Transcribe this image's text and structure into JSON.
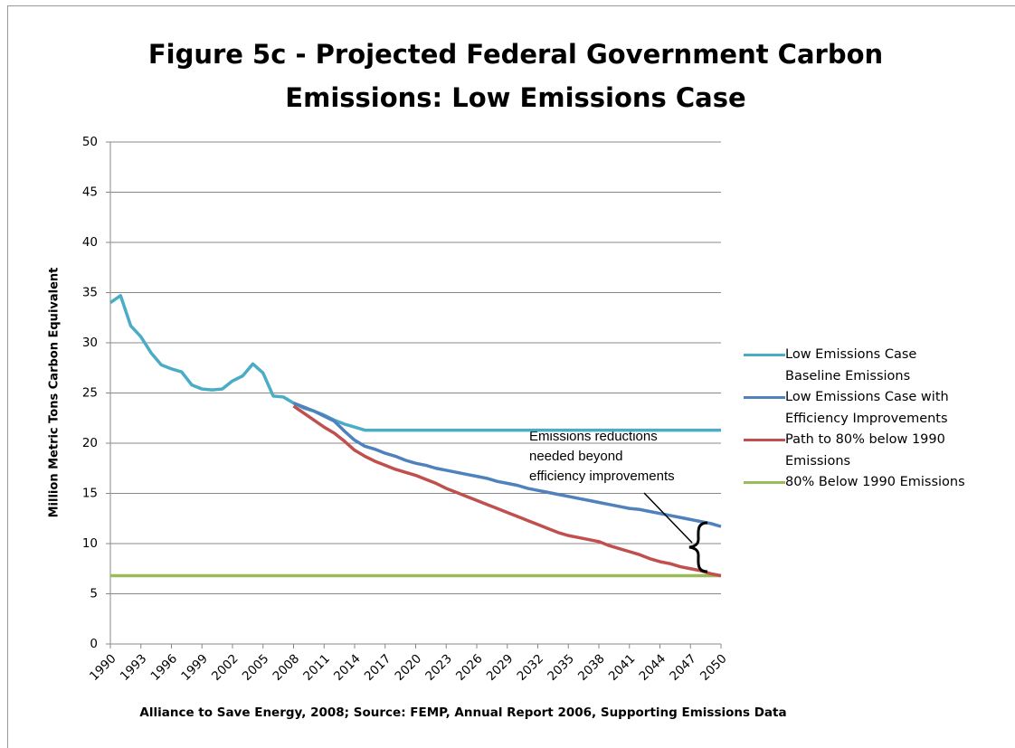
{
  "chart_data": {
    "type": "line",
    "title": "Figure 5c - Projected Federal Government Carbon Emissions: Low Emissions Case",
    "ylabel": "Million Metric Tons Carbon Equivalent",
    "source": "Alliance to Save Energy, 2008; Source:  FEMP, Annual Report 2006, Supporting Emissions Data",
    "annotation": [
      "Emissions reductions",
      "needed beyond",
      "efficiency improvements"
    ],
    "x": [
      1990,
      1991,
      1992,
      1993,
      1994,
      1995,
      1996,
      1997,
      1998,
      1999,
      2000,
      2001,
      2002,
      2003,
      2004,
      2005,
      2006,
      2007,
      2008,
      2009,
      2010,
      2011,
      2012,
      2013,
      2014,
      2015,
      2016,
      2017,
      2018,
      2019,
      2020,
      2021,
      2022,
      2023,
      2024,
      2025,
      2026,
      2027,
      2028,
      2029,
      2030,
      2031,
      2032,
      2033,
      2034,
      2035,
      2036,
      2037,
      2038,
      2039,
      2040,
      2041,
      2042,
      2043,
      2044,
      2045,
      2046,
      2047,
      2048,
      2049,
      2050
    ],
    "xlim": [
      1990,
      2050
    ],
    "xticks": [
      1990,
      1993,
      1996,
      1999,
      2002,
      2005,
      2008,
      2011,
      2014,
      2017,
      2020,
      2023,
      2026,
      2029,
      2032,
      2035,
      2038,
      2041,
      2044,
      2047,
      2050
    ],
    "ylim": [
      0,
      50
    ],
    "yticks": [
      0,
      5,
      10,
      15,
      20,
      25,
      30,
      35,
      40,
      45,
      50
    ],
    "grid": true,
    "series": [
      {
        "name": "Low Emissions Case Baseline Emissions",
        "color": "#4bacc6",
        "values": [
          34,
          34.7,
          31.7,
          30.6,
          29,
          27.8,
          27.4,
          27.1,
          25.8,
          25.4,
          25.3,
          25.4,
          26.2,
          26.7,
          27.9,
          27,
          24.7,
          24.6,
          24,
          23.5,
          23.2,
          22.8,
          22.3,
          21.9,
          21.6,
          21.3,
          21.3,
          21.3,
          21.3,
          21.3,
          21.3,
          21.3,
          21.3,
          21.3,
          21.3,
          21.3,
          21.3,
          21.3,
          21.3,
          21.3,
          21.3,
          21.3,
          21.3,
          21.3,
          21.3,
          21.3,
          21.3,
          21.3,
          21.3,
          21.3,
          21.3,
          21.3,
          21.3,
          21.3,
          21.3,
          21.3,
          21.3,
          21.3,
          21.3,
          21.3,
          21.3
        ]
      },
      {
        "name": "Low Emissions Case with Efficiency Improvements",
        "color": "#4f81bd",
        "values": [
          null,
          null,
          null,
          null,
          null,
          null,
          null,
          null,
          null,
          null,
          null,
          null,
          null,
          null,
          null,
          null,
          null,
          null,
          24.0,
          23.6,
          23.2,
          22.7,
          22.2,
          21.2,
          20.3,
          19.7,
          19.4,
          19.0,
          18.7,
          18.3,
          18.0,
          17.8,
          17.5,
          17.3,
          17.1,
          16.9,
          16.7,
          16.5,
          16.2,
          16.0,
          15.8,
          15.5,
          15.3,
          15.1,
          14.9,
          14.7,
          14.5,
          14.3,
          14.1,
          13.9,
          13.7,
          13.5,
          13.4,
          13.2,
          13.0,
          12.8,
          12.6,
          12.4,
          12.2,
          12.0,
          11.7
        ]
      },
      {
        "name": "Path to 80% below 1990 Emissions",
        "color": "#c0504d",
        "values": [
          null,
          null,
          null,
          null,
          null,
          null,
          null,
          null,
          null,
          null,
          null,
          null,
          null,
          null,
          null,
          null,
          null,
          null,
          23.7,
          23.0,
          22.3,
          21.6,
          21.0,
          20.2,
          19.3,
          18.7,
          18.2,
          17.8,
          17.4,
          17.1,
          16.8,
          16.4,
          16.0,
          15.5,
          15.1,
          14.7,
          14.3,
          13.9,
          13.5,
          13.1,
          12.7,
          12.3,
          11.9,
          11.5,
          11.1,
          10.8,
          10.6,
          10.4,
          10.2,
          9.8,
          9.5,
          9.2,
          8.9,
          8.5,
          8.2,
          8.0,
          7.7,
          7.5,
          7.3,
          7.0,
          6.8
        ]
      },
      {
        "name": "80% Below 1990 Emissions",
        "color": "#9bbb59",
        "values": [
          6.8,
          6.8,
          6.8,
          6.8,
          6.8,
          6.8,
          6.8,
          6.8,
          6.8,
          6.8,
          6.8,
          6.8,
          6.8,
          6.8,
          6.8,
          6.8,
          6.8,
          6.8,
          6.8,
          6.8,
          6.8,
          6.8,
          6.8,
          6.8,
          6.8,
          6.8,
          6.8,
          6.8,
          6.8,
          6.8,
          6.8,
          6.8,
          6.8,
          6.8,
          6.8,
          6.8,
          6.8,
          6.8,
          6.8,
          6.8,
          6.8,
          6.8,
          6.8,
          6.8,
          6.8,
          6.8,
          6.8,
          6.8,
          6.8,
          6.8,
          6.8,
          6.8,
          6.8,
          6.8,
          6.8,
          6.8,
          6.8,
          6.8,
          6.8,
          6.8,
          6.8
        ]
      }
    ]
  }
}
